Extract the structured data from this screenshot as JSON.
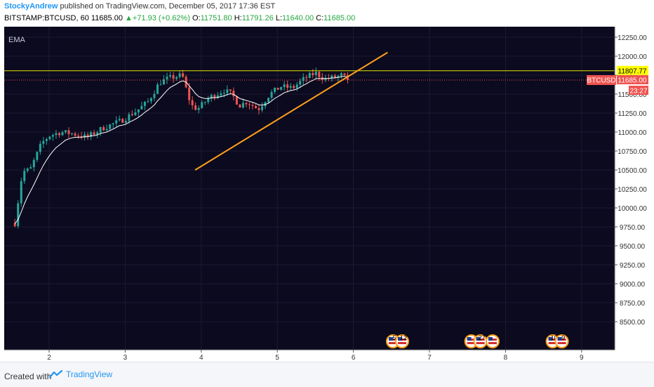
{
  "header": {
    "author": "StockyAndrew",
    "published": "published on TradingView.com, December 05, 2017 17:36 EST",
    "symbol": "BITSTAMP:BTCUSD, 60",
    "last": "11685.00",
    "change": "+71.93 (+0.62%)",
    "o_label": "O:",
    "o": "11751.80",
    "h_label": "H:",
    "h": "11791.26",
    "l_label": "L:",
    "l": "11640.00",
    "c_label": "C:",
    "c": "11685.00"
  },
  "indicator_label": "EMA",
  "price_axis": [
    "12250.00",
    "12000.00",
    "11750.00",
    "11500.00",
    "11250.00",
    "11000.00",
    "10750.00",
    "10500.00",
    "10250.00",
    "10000.00",
    "9750.00",
    "9500.00",
    "9250.00",
    "9000.00",
    "8750.00",
    "8500.00"
  ],
  "time_axis": [
    "2",
    "3",
    "4",
    "5",
    "6",
    "7",
    "8",
    "9"
  ],
  "resistance_label": "11807.77",
  "price_tag": {
    "symbol": "BTCUSD",
    "price": "11685.00",
    "countdown": "23:27"
  },
  "events": [
    {
      "day": 6.52,
      "label": "5"
    },
    {
      "day": 6.64,
      "label": "12"
    },
    {
      "day": 7.55,
      "label": ""
    },
    {
      "day": 7.67,
      "label": "27"
    },
    {
      "day": 7.83,
      "label": ""
    },
    {
      "day": 8.62,
      "label": "10"
    },
    {
      "day": 8.74,
      "label": "9"
    }
  ],
  "colors": {
    "background": "#0b0a1f",
    "up": "#26a69a",
    "down": "#ef5350",
    "ema": "#ffffff",
    "resistance": "#e8e800",
    "trend": "#ff9f1a",
    "accent": "#2196f3"
  },
  "footer": {
    "created": "Created with",
    "brand": "TradingView"
  }
}
